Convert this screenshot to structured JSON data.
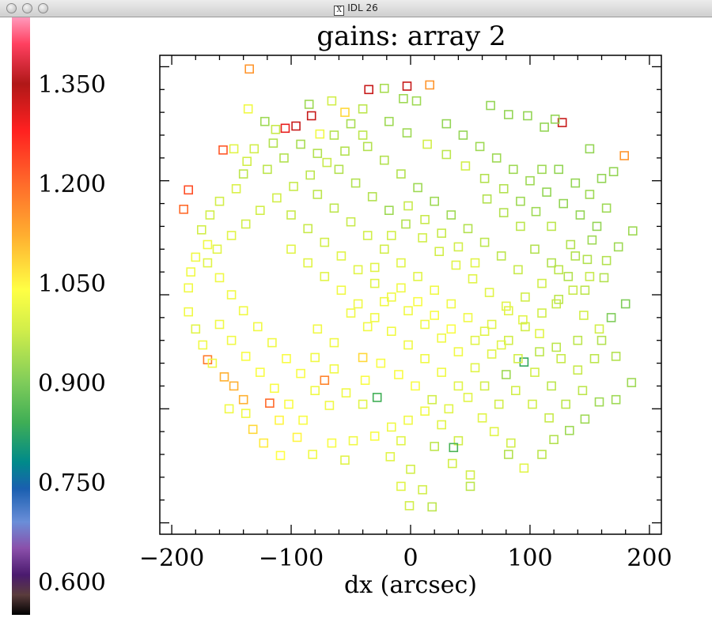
{
  "window": {
    "title": "IDL 26",
    "icon": "x11-icon"
  },
  "chart_data": {
    "type": "scatter",
    "marker": "hollow-square",
    "title": "gains: array 2",
    "xlabel": "dx (arcsec)",
    "ylabel": "",
    "xlim": [
      -210,
      210
    ],
    "ylim": [
      -210,
      210
    ],
    "x_ticks": [
      -200,
      -100,
      0,
      100,
      200
    ],
    "x_tick_labels": [
      "−200",
      "−100",
      "0",
      "100",
      "200"
    ],
    "y_ticks": [
      -200,
      -100,
      0,
      100,
      200
    ],
    "colorbar": {
      "range": [
        0.55,
        1.45
      ],
      "tick_values": [
        1.35,
        1.2,
        1.05,
        0.9,
        0.75,
        0.6
      ],
      "tick_labels": [
        "1.350",
        "1.200",
        "1.050",
        "0.900",
        "0.750",
        "0.600"
      ],
      "colormap": [
        {
          "v": 0.55,
          "c": "#000000"
        },
        {
          "v": 0.58,
          "c": "#5a3c3c"
        },
        {
          "v": 0.61,
          "c": "#4a1a6e"
        },
        {
          "v": 0.65,
          "c": "#8a4faa"
        },
        {
          "v": 0.69,
          "c": "#6a8ed8"
        },
        {
          "v": 0.74,
          "c": "#1a5fb0"
        },
        {
          "v": 0.78,
          "c": "#008a8a"
        },
        {
          "v": 0.84,
          "c": "#3fae55"
        },
        {
          "v": 0.9,
          "c": "#7fcc5a"
        },
        {
          "v": 0.98,
          "c": "#d2ee4a"
        },
        {
          "v": 1.04,
          "c": "#ffff44"
        },
        {
          "v": 1.12,
          "c": "#ffb030"
        },
        {
          "v": 1.2,
          "c": "#ff6a2a"
        },
        {
          "v": 1.28,
          "c": "#ff2020"
        },
        {
          "v": 1.35,
          "c": "#b01818"
        },
        {
          "v": 1.41,
          "c": "#ff4060"
        },
        {
          "v": 1.45,
          "c": "#ff99bb"
        }
      ]
    },
    "points": [
      [
        -35,
        180,
        1.33
      ],
      [
        -3,
        183,
        1.33
      ],
      [
        -83,
        157,
        1.33
      ],
      [
        -96,
        148,
        1.33
      ],
      [
        127,
        151,
        1.33
      ],
      [
        -105,
        146,
        1.3
      ],
      [
        16,
        184,
        1.15
      ],
      [
        -135,
        198,
        1.15
      ],
      [
        -157,
        127,
        1.22
      ],
      [
        -186,
        92,
        1.23
      ],
      [
        -190,
        75,
        1.2
      ],
      [
        179,
        122,
        1.15
      ],
      [
        -136,
        163,
        1.02
      ],
      [
        -148,
        128,
        1.0
      ],
      [
        -76,
        141,
        1.02
      ],
      [
        -55,
        160,
        1.08
      ],
      [
        -113,
        145,
        0.97
      ],
      [
        -22,
        181,
        0.94
      ],
      [
        -6,
        172,
        0.93
      ],
      [
        5,
        170,
        0.93
      ],
      [
        -40,
        163,
        0.96
      ],
      [
        -66,
        170,
        0.98
      ],
      [
        -85,
        167,
        0.93
      ],
      [
        67,
        166,
        0.92
      ],
      [
        82,
        158,
        0.92
      ],
      [
        98,
        157,
        0.92
      ],
      [
        112,
        147,
        0.92
      ],
      [
        121,
        154,
        0.92
      ],
      [
        -122,
        152,
        0.93
      ],
      [
        -115,
        133,
        0.95
      ],
      [
        -131,
        128,
        0.98
      ],
      [
        -137,
        117,
        0.98
      ],
      [
        -140,
        106,
        0.96
      ],
      [
        -146,
        93,
        0.99
      ],
      [
        -160,
        82,
        0.98
      ],
      [
        -168,
        70,
        0.98
      ],
      [
        -175,
        57,
        0.98
      ],
      [
        -170,
        44,
        1.02
      ],
      [
        -180,
        33,
        1.02
      ],
      [
        -184,
        20,
        1.02
      ],
      [
        -186,
        6,
        1.02
      ],
      [
        -186,
        -15,
        1.02
      ],
      [
        -180,
        -30,
        1.0
      ],
      [
        -170,
        -57,
        1.18
      ],
      [
        -156,
        -72,
        1.12
      ],
      [
        -148,
        -80,
        1.12
      ],
      [
        -140,
        -92,
        1.12
      ],
      [
        -118,
        -95,
        1.2
      ],
      [
        -110,
        -110,
        1.05
      ],
      [
        -132,
        -118,
        1.08
      ],
      [
        -123,
        -130,
        1.06
      ],
      [
        -109,
        -141,
        1.04
      ],
      [
        -95,
        -125,
        1.05
      ],
      [
        -82,
        -140,
        1.02
      ],
      [
        -66,
        -130,
        1.03
      ],
      [
        -55,
        -145,
        1.0
      ],
      [
        -48,
        -128,
        1.02
      ],
      [
        -30,
        -124,
        1.03
      ],
      [
        -17,
        -142,
        1.0
      ],
      [
        0,
        -153,
        0.98
      ],
      [
        -8,
        -128,
        1.0
      ],
      [
        20,
        -133,
        0.96
      ],
      [
        35,
        -148,
        0.98
      ],
      [
        50,
        -158,
        0.98
      ],
      [
        -8,
        -168,
        1.0
      ],
      [
        10,
        -171,
        0.98
      ],
      [
        50,
        -168,
        0.96
      ],
      [
        -1,
        -185,
        0.98
      ],
      [
        18,
        -186,
        0.96
      ],
      [
        82,
        -140,
        0.95
      ],
      [
        95,
        -152,
        1.0
      ],
      [
        110,
        -140,
        0.96
      ],
      [
        120,
        -127,
        0.95
      ],
      [
        133,
        -119,
        0.93
      ],
      [
        146,
        -109,
        0.93
      ],
      [
        158,
        -94,
        0.93
      ],
      [
        172,
        -92,
        0.93
      ],
      [
        185,
        -77,
        0.93
      ],
      [
        -72,
        -75,
        1.17
      ],
      [
        -80,
        -55,
        1.02
      ],
      [
        -64,
        -65,
        1.02
      ],
      [
        -54,
        -86,
        1.02
      ],
      [
        -38,
        -75,
        1.03
      ],
      [
        -28,
        -90,
        0.84
      ],
      [
        -40,
        -55,
        1.08
      ],
      [
        -25,
        -60,
        1.03
      ],
      [
        -10,
        -70,
        1.03
      ],
      [
        4,
        -80,
        1.03
      ],
      [
        18,
        -92,
        0.98
      ],
      [
        32,
        -100,
        1.0
      ],
      [
        48,
        -90,
        1.0
      ],
      [
        62,
        -80,
        0.98
      ],
      [
        80,
        -70,
        0.93
      ],
      [
        95,
        -59,
        0.83
      ],
      [
        108,
        -50,
        0.96
      ],
      [
        122,
        -46,
        0.96
      ],
      [
        140,
        -40,
        0.96
      ],
      [
        158,
        -30,
        0.98
      ],
      [
        168,
        -20,
        0.9
      ],
      [
        180,
        -8,
        0.9
      ],
      [
        162,
        15,
        0.95
      ],
      [
        148,
        31,
        0.95
      ],
      [
        134,
        44,
        0.95
      ],
      [
        118,
        60,
        0.96
      ],
      [
        105,
        73,
        0.93
      ],
      [
        92,
        82,
        0.93
      ],
      [
        78,
        93,
        0.95
      ],
      [
        62,
        102,
        0.95
      ],
      [
        46,
        113,
        0.98
      ],
      [
        30,
        123,
        0.96
      ],
      [
        14,
        132,
        0.98
      ],
      [
        -3,
        142,
        0.93
      ],
      [
        -18,
        152,
        0.93
      ],
      [
        -40,
        140,
        0.96
      ],
      [
        -55,
        126,
        0.95
      ],
      [
        -70,
        116,
        0.97
      ],
      [
        -84,
        105,
        0.96
      ],
      [
        -98,
        95,
        0.97
      ],
      [
        -112,
        85,
        0.98
      ],
      [
        -126,
        74,
        0.98
      ],
      [
        -138,
        62,
        0.98
      ],
      [
        -150,
        52,
        1.0
      ],
      [
        -162,
        40,
        1.0
      ],
      [
        -170,
        28,
        1.0
      ],
      [
        -160,
        15,
        1.02
      ],
      [
        -150,
        0,
        1.02
      ],
      [
        -140,
        -14,
        1.02
      ],
      [
        -128,
        -28,
        1.02
      ],
      [
        -116,
        -42,
        1.02
      ],
      [
        -104,
        -56,
        1.03
      ],
      [
        -92,
        -69,
        1.03
      ],
      [
        -80,
        -84,
        1.02
      ],
      [
        -68,
        -97,
        1.02
      ],
      [
        -60,
        110,
        0.95
      ],
      [
        -46,
        98,
        0.95
      ],
      [
        -32,
        86,
        0.95
      ],
      [
        -18,
        74,
        0.93
      ],
      [
        -4,
        62,
        0.95
      ],
      [
        10,
        50,
        0.98
      ],
      [
        24,
        38,
        0.98
      ],
      [
        38,
        26,
        1.0
      ],
      [
        52,
        14,
        1.0
      ],
      [
        66,
        2,
        1.0
      ],
      [
        80,
        -10,
        1.0
      ],
      [
        94,
        -22,
        1.0
      ],
      [
        108,
        -34,
        1.0
      ],
      [
        122,
        -8,
        0.97
      ],
      [
        136,
        4,
        0.97
      ],
      [
        150,
        16,
        0.97
      ],
      [
        164,
        30,
        0.95
      ],
      [
        174,
        42,
        0.93
      ],
      [
        186,
        56,
        0.93
      ],
      [
        -100,
        40,
        1.0
      ],
      [
        -86,
        28,
        1.0
      ],
      [
        -72,
        16,
        1.0
      ],
      [
        -58,
        4,
        1.02
      ],
      [
        -44,
        -8,
        1.02
      ],
      [
        -30,
        -20,
        1.02
      ],
      [
        -16,
        -32,
        1.02
      ],
      [
        -2,
        -44,
        1.02
      ],
      [
        12,
        -56,
        1.02
      ],
      [
        26,
        -68,
        1.02
      ],
      [
        40,
        -80,
        1.0
      ],
      [
        54,
        -64,
        1.0
      ],
      [
        68,
        -52,
        1.0
      ],
      [
        82,
        -40,
        0.98
      ],
      [
        96,
        -28,
        0.98
      ],
      [
        110,
        -16,
        0.98
      ],
      [
        124,
        -4,
        0.96
      ],
      [
        -100,
        70,
        0.97
      ],
      [
        -86,
        58,
        0.97
      ],
      [
        -72,
        46,
        0.98
      ],
      [
        -58,
        34,
        1.0
      ],
      [
        -44,
        22,
        1.0
      ],
      [
        -30,
        10,
        1.0
      ],
      [
        -16,
        -2,
        1.02
      ],
      [
        -2,
        -14,
        1.02
      ],
      [
        12,
        -26,
        1.02
      ],
      [
        26,
        -38,
        1.02
      ],
      [
        40,
        -50,
        1.02
      ],
      [
        54,
        -40,
        1.0
      ],
      [
        68,
        -26,
        1.0
      ],
      [
        82,
        -14,
        1.0
      ],
      [
        96,
        -2,
        0.98
      ],
      [
        110,
        10,
        0.98
      ],
      [
        124,
        22,
        0.96
      ],
      [
        138,
        34,
        0.95
      ],
      [
        152,
        48,
        0.93
      ],
      [
        -78,
        88,
        0.96
      ],
      [
        -64,
        76,
        0.96
      ],
      [
        -50,
        64,
        0.97
      ],
      [
        -36,
        52,
        0.98
      ],
      [
        -22,
        40,
        0.98
      ],
      [
        -8,
        28,
        1.0
      ],
      [
        6,
        16,
        1.0
      ],
      [
        20,
        4,
        1.02
      ],
      [
        34,
        -8,
        1.02
      ],
      [
        48,
        -20,
        1.02
      ],
      [
        62,
        -32,
        1.0
      ],
      [
        76,
        -44,
        1.0
      ],
      [
        90,
        -56,
        0.98
      ],
      [
        104,
        -68,
        0.98
      ],
      [
        118,
        -80,
        0.96
      ],
      [
        -22,
        118,
        0.95
      ],
      [
        -8,
        106,
        0.95
      ],
      [
        6,
        94,
        0.93
      ],
      [
        20,
        82,
        0.93
      ],
      [
        34,
        70,
        0.93
      ],
      [
        48,
        58,
        0.95
      ],
      [
        62,
        46,
        0.96
      ],
      [
        76,
        34,
        0.96
      ],
      [
        90,
        22,
        0.97
      ],
      [
        104,
        40,
        0.95
      ],
      [
        118,
        28,
        0.95
      ],
      [
        132,
        16,
        0.95
      ],
      [
        146,
        4,
        0.96
      ],
      [
        30,
        150,
        0.92
      ],
      [
        44,
        140,
        0.92
      ],
      [
        58,
        130,
        0.93
      ],
      [
        72,
        120,
        0.93
      ],
      [
        86,
        110,
        0.93
      ],
      [
        100,
        100,
        0.93
      ],
      [
        114,
        90,
        0.92
      ],
      [
        128,
        80,
        0.92
      ],
      [
        142,
        70,
        0.92
      ],
      [
        156,
        60,
        0.92
      ],
      [
        -150,
        -40,
        1.02
      ],
      [
        -138,
        -54,
        1.03
      ],
      [
        -126,
        -68,
        1.03
      ],
      [
        -114,
        -82,
        1.03
      ],
      [
        -102,
        -96,
        1.03
      ],
      [
        -90,
        -110,
        1.03
      ],
      [
        -160,
        -26,
        1.02
      ],
      [
        -174,
        -44,
        1.02
      ],
      [
        -166,
        -60,
        1.02
      ],
      [
        -152,
        -100,
        1.02
      ],
      [
        -138,
        -104,
        1.02
      ],
      [
        -78,
        -30,
        1.02
      ],
      [
        -64,
        -42,
        1.02
      ],
      [
        -50,
        -16,
        1.02
      ],
      [
        -36,
        -28,
        1.02
      ],
      [
        -22,
        -6,
        1.02
      ],
      [
        -8,
        6,
        1.02
      ],
      [
        6,
        -6,
        1.03
      ],
      [
        20,
        -18,
        1.03
      ],
      [
        34,
        -30,
        1.03
      ],
      [
        -120,
        110,
        0.96
      ],
      [
        -106,
        120,
        0.95
      ],
      [
        -92,
        132,
        0.94
      ],
      [
        -78,
        124,
        0.95
      ],
      [
        -64,
        140,
        0.95
      ],
      [
        -50,
        150,
        0.94
      ],
      [
        -36,
        130,
        0.95
      ],
      [
        60,
        -108,
        1.0
      ],
      [
        74,
        -96,
        0.98
      ],
      [
        88,
        -84,
        0.98
      ],
      [
        102,
        -96,
        0.98
      ],
      [
        116,
        -108,
        0.97
      ],
      [
        130,
        -96,
        0.96
      ],
      [
        144,
        -84,
        0.96
      ],
      [
        140,
        -66,
        0.97
      ],
      [
        126,
        -56,
        0.97
      ],
      [
        154,
        -56,
        0.96
      ],
      [
        70,
        -120,
        1.0
      ],
      [
        84,
        -130,
        0.98
      ],
      [
        40,
        -128,
        0.98
      ],
      [
        26,
        -114,
        1.0
      ],
      [
        12,
        -102,
        1.02
      ],
      [
        -2,
        -110,
        1.02
      ],
      [
        -16,
        -116,
        1.02
      ],
      [
        110,
        110,
        0.93
      ],
      [
        124,
        110,
        0.92
      ],
      [
        138,
        98,
        0.92
      ],
      [
        150,
        88,
        0.93
      ],
      [
        164,
        76,
        0.93
      ],
      [
        170,
        108,
        0.92
      ],
      [
        -30,
        24,
        1.0
      ],
      [
        -16,
        52,
        0.98
      ],
      [
        -2,
        78,
        0.97
      ],
      [
        12,
        66,
        0.97
      ],
      [
        26,
        54,
        0.97
      ],
      [
        40,
        42,
        0.98
      ],
      [
        54,
        28,
        1.0
      ],
      [
        160,
        -40,
        0.95
      ],
      [
        172,
        -54,
        0.95
      ],
      [
        145,
        -18,
        0.98
      ],
      [
        64,
        84,
        0.95
      ],
      [
        78,
        72,
        0.95
      ],
      [
        92,
        60,
        0.96
      ],
      [
        150,
        128,
        0.92
      ],
      [
        160,
        102,
        0.92
      ],
      [
        36,
        -134,
        0.85
      ],
      [
        -40,
        -96,
        1.0
      ]
    ]
  }
}
